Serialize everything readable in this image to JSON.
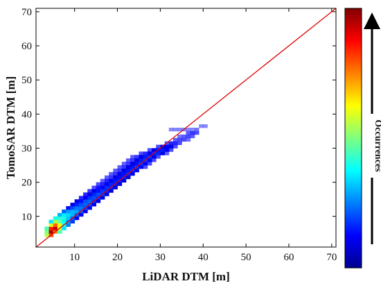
{
  "chart_data": {
    "type": "heatmap",
    "title": "",
    "xlabel": "LiDAR DTM [m]",
    "ylabel": "TomoSAR DTM [m]",
    "xlim": [
      1,
      71
    ],
    "ylim": [
      1,
      71
    ],
    "xticks": [
      "10",
      "20",
      "30",
      "40",
      "50",
      "60",
      "70"
    ],
    "yticks": [
      "10",
      "20",
      "30",
      "40",
      "50",
      "60",
      "70"
    ],
    "grid": false,
    "colormap": "jet",
    "colorbar_label": "Occurrences",
    "colorbar_arrow": "up",
    "reference_line": {
      "x": [
        1,
        71
      ],
      "y": [
        1,
        71
      ],
      "color": "#e00000",
      "label": ""
    },
    "bin_size": 1,
    "cells": [
      [
        3,
        4,
        0.55
      ],
      [
        4,
        4,
        0.8
      ],
      [
        3,
        5,
        0.5
      ],
      [
        4,
        5,
        0.95
      ],
      [
        5,
        5,
        0.75
      ],
      [
        6,
        5,
        0.45
      ],
      [
        3,
        6,
        0.45
      ],
      [
        4,
        6,
        0.85
      ],
      [
        5,
        6,
        0.92
      ],
      [
        6,
        6,
        0.6
      ],
      [
        7,
        6,
        0.35
      ],
      [
        4,
        7,
        0.6
      ],
      [
        5,
        7,
        0.78
      ],
      [
        6,
        7,
        0.62
      ],
      [
        7,
        7,
        0.42
      ],
      [
        8,
        7,
        0.25
      ],
      [
        4,
        8,
        0.35
      ],
      [
        5,
        8,
        0.55
      ],
      [
        6,
        8,
        0.48
      ],
      [
        7,
        8,
        0.38
      ],
      [
        8,
        8,
        0.28
      ],
      [
        9,
        8,
        0.18
      ],
      [
        5,
        9,
        0.4
      ],
      [
        6,
        9,
        0.42
      ],
      [
        7,
        9,
        0.4
      ],
      [
        8,
        9,
        0.32
      ],
      [
        9,
        9,
        0.22
      ],
      [
        10,
        9,
        0.12
      ],
      [
        6,
        10,
        0.3
      ],
      [
        7,
        10,
        0.36
      ],
      [
        8,
        10,
        0.34
      ],
      [
        9,
        10,
        0.3
      ],
      [
        10,
        10,
        0.22
      ],
      [
        11,
        10,
        0.12
      ],
      [
        7,
        11,
        0.22
      ],
      [
        8,
        11,
        0.28
      ],
      [
        9,
        11,
        0.3
      ],
      [
        10,
        11,
        0.28
      ],
      [
        11,
        11,
        0.22
      ],
      [
        12,
        11,
        0.12
      ],
      [
        8,
        12,
        0.14
      ],
      [
        9,
        12,
        0.2
      ],
      [
        10,
        12,
        0.24
      ],
      [
        11,
        12,
        0.24
      ],
      [
        12,
        12,
        0.2
      ],
      [
        13,
        12,
        0.12
      ],
      [
        9,
        13,
        0.1
      ],
      [
        10,
        13,
        0.16
      ],
      [
        11,
        13,
        0.2
      ],
      [
        12,
        13,
        0.22
      ],
      [
        13,
        13,
        0.2
      ],
      [
        14,
        13,
        0.12
      ],
      [
        10,
        14,
        0.1
      ],
      [
        11,
        14,
        0.14
      ],
      [
        12,
        14,
        0.2
      ],
      [
        13,
        14,
        0.22
      ],
      [
        14,
        14,
        0.18
      ],
      [
        15,
        14,
        0.1
      ],
      [
        11,
        15,
        0.08
      ],
      [
        12,
        15,
        0.12
      ],
      [
        13,
        15,
        0.18
      ],
      [
        14,
        15,
        0.2
      ],
      [
        15,
        15,
        0.18
      ],
      [
        16,
        15,
        0.1
      ],
      [
        12,
        16,
        0.08
      ],
      [
        13,
        16,
        0.1
      ],
      [
        14,
        16,
        0.16
      ],
      [
        15,
        16,
        0.2
      ],
      [
        16,
        16,
        0.18
      ],
      [
        17,
        16,
        0.1
      ],
      [
        13,
        17,
        0.07
      ],
      [
        14,
        17,
        0.1
      ],
      [
        15,
        17,
        0.14
      ],
      [
        16,
        17,
        0.18
      ],
      [
        17,
        17,
        0.16
      ],
      [
        18,
        17,
        0.1
      ],
      [
        14,
        18,
        0.06
      ],
      [
        15,
        18,
        0.09
      ],
      [
        16,
        18,
        0.13
      ],
      [
        17,
        18,
        0.17
      ],
      [
        18,
        18,
        0.16
      ],
      [
        19,
        18,
        0.1
      ],
      [
        15,
        19,
        0.06
      ],
      [
        16,
        19,
        0.08
      ],
      [
        17,
        19,
        0.12
      ],
      [
        18,
        19,
        0.16
      ],
      [
        19,
        19,
        0.15
      ],
      [
        20,
        19,
        0.1
      ],
      [
        16,
        20,
        0.05
      ],
      [
        17,
        20,
        0.08
      ],
      [
        18,
        20,
        0.11
      ],
      [
        19,
        20,
        0.15
      ],
      [
        20,
        20,
        0.15
      ],
      [
        21,
        20,
        0.1
      ],
      [
        17,
        21,
        0.05
      ],
      [
        18,
        21,
        0.07
      ],
      [
        19,
        21,
        0.1
      ],
      [
        20,
        21,
        0.14
      ],
      [
        21,
        21,
        0.15
      ],
      [
        22,
        21,
        0.1
      ],
      [
        18,
        22,
        0.05
      ],
      [
        19,
        22,
        0.07
      ],
      [
        20,
        22,
        0.1
      ],
      [
        21,
        22,
        0.14
      ],
      [
        22,
        22,
        0.16
      ],
      [
        23,
        22,
        0.1
      ],
      [
        19,
        23,
        0.05
      ],
      [
        20,
        23,
        0.07
      ],
      [
        21,
        23,
        0.1
      ],
      [
        22,
        23,
        0.14
      ],
      [
        23,
        23,
        0.17
      ],
      [
        24,
        23,
        0.12
      ],
      [
        20,
        24,
        0.05
      ],
      [
        21,
        24,
        0.07
      ],
      [
        22,
        24,
        0.1
      ],
      [
        23,
        24,
        0.14
      ],
      [
        24,
        24,
        0.18
      ],
      [
        25,
        24,
        0.12
      ],
      [
        26,
        24,
        0.06
      ],
      [
        21,
        25,
        0.05
      ],
      [
        22,
        25,
        0.07
      ],
      [
        23,
        25,
        0.1
      ],
      [
        24,
        25,
        0.14
      ],
      [
        25,
        25,
        0.18
      ],
      [
        26,
        25,
        0.12
      ],
      [
        27,
        25,
        0.06
      ],
      [
        22,
        26,
        0.05
      ],
      [
        23,
        26,
        0.07
      ],
      [
        24,
        26,
        0.1
      ],
      [
        25,
        26,
        0.15
      ],
      [
        26,
        26,
        0.18
      ],
      [
        27,
        26,
        0.12
      ],
      [
        28,
        26,
        0.06
      ],
      [
        23,
        27,
        0.05
      ],
      [
        24,
        27,
        0.07
      ],
      [
        25,
        27,
        0.1
      ],
      [
        26,
        27,
        0.15
      ],
      [
        27,
        27,
        0.18
      ],
      [
        28,
        27,
        0.12
      ],
      [
        29,
        27,
        0.06
      ],
      [
        25,
        28,
        0.06
      ],
      [
        26,
        28,
        0.08
      ],
      [
        27,
        28,
        0.12
      ],
      [
        28,
        28,
        0.16
      ],
      [
        29,
        28,
        0.16
      ],
      [
        30,
        28,
        0.1
      ],
      [
        31,
        28,
        0.05
      ],
      [
        27,
        29,
        0.06
      ],
      [
        28,
        29,
        0.1
      ],
      [
        29,
        29,
        0.14
      ],
      [
        30,
        29,
        0.15
      ],
      [
        31,
        29,
        0.12
      ],
      [
        32,
        29,
        0.06
      ],
      [
        29,
        30,
        0.06
      ],
      [
        30,
        30,
        0.1
      ],
      [
        31,
        30,
        0.12
      ],
      [
        32,
        30,
        0.1
      ],
      [
        33,
        30,
        0.06
      ],
      [
        31,
        31,
        0.05
      ],
      [
        32,
        31,
        0.08
      ],
      [
        33,
        31,
        0.08
      ],
      [
        34,
        31,
        0.06
      ],
      [
        33,
        32,
        0.05
      ],
      [
        34,
        32,
        0.06
      ],
      [
        35,
        32,
        0.06
      ],
      [
        36,
        32,
        0.04
      ],
      [
        34,
        33,
        0.04
      ],
      [
        35,
        33,
        0.05
      ],
      [
        36,
        33,
        0.06
      ],
      [
        37,
        33,
        0.05
      ],
      [
        36,
        34,
        0.05
      ],
      [
        37,
        34,
        0.07
      ],
      [
        38,
        34,
        0.06
      ],
      [
        32,
        35,
        0.03
      ],
      [
        33,
        35,
        0.03
      ],
      [
        34,
        35,
        0.03
      ],
      [
        35,
        35,
        0.03
      ],
      [
        36,
        35,
        0.03
      ],
      [
        37,
        35,
        0.03
      ],
      [
        38,
        35,
        0.04
      ],
      [
        39,
        36,
        0.03
      ],
      [
        40,
        36,
        0.03
      ]
    ]
  }
}
